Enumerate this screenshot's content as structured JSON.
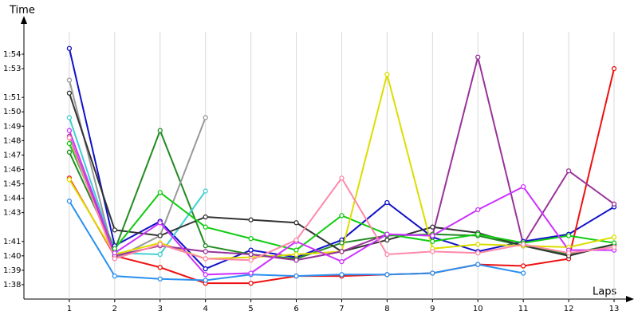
{
  "chart_data": {
    "type": "line",
    "y_label": "Time",
    "x_label": "Laps",
    "x": [
      1,
      2,
      3,
      4,
      5,
      6,
      7,
      8,
      9,
      10,
      11,
      12,
      13
    ],
    "xlim": [
      0,
      13.4
    ],
    "xticks": [
      1,
      2,
      3,
      4,
      5,
      6,
      7,
      8,
      9,
      10,
      11,
      12,
      13
    ],
    "ylim": [
      97,
      116
    ],
    "yticks": [
      {
        "value": 114,
        "label": "1:54"
      },
      {
        "value": 113,
        "label": "1:53"
      },
      {
        "value": 111,
        "label": "1:51"
      },
      {
        "value": 110,
        "label": "1:50"
      },
      {
        "value": 109,
        "label": "1:49"
      },
      {
        "value": 108,
        "label": "1:48"
      },
      {
        "value": 107,
        "label": "1:47"
      },
      {
        "value": 106,
        "label": "1:46"
      },
      {
        "value": 105,
        "label": "1:45"
      },
      {
        "value": 104,
        "label": "1:44"
      },
      {
        "value": 103,
        "label": "1:43"
      },
      {
        "value": 101,
        "label": "1:41"
      },
      {
        "value": 100,
        "label": "1:40"
      },
      {
        "value": 99,
        "label": "1:39"
      },
      {
        "value": 98,
        "label": "1:38"
      }
    ],
    "grid": true,
    "series": [
      {
        "color": "#1010c8",
        "values": [
          114.4,
          100.7,
          102.4,
          99.1,
          100.4,
          99.9,
          101.1,
          103.7,
          101.3,
          100.3,
          101.0,
          101.5,
          103.4
        ]
      },
      {
        "color": "#ee1111",
        "values": [
          105.4,
          100.0,
          99.2,
          98.1,
          98.1,
          98.6,
          98.6,
          98.7,
          98.8,
          99.4,
          99.3,
          99.8,
          113.0
        ]
      },
      {
        "color": "#2a90f0",
        "values": [
          103.8,
          98.6,
          98.4,
          98.3,
          98.7,
          98.6,
          98.7,
          98.7,
          98.8,
          99.4,
          98.8,
          null,
          null
        ]
      },
      {
        "color": "#228b22",
        "values": [
          107.2,
          100.4,
          108.7,
          100.7,
          100.1,
          99.8,
          100.9,
          101.4,
          101.5,
          101.4,
          100.7,
          100.1,
          100.8
        ]
      },
      {
        "color": "#999999",
        "values": [
          112.2,
          99.8,
          101.4,
          109.6,
          null,
          null,
          null,
          null,
          null,
          null,
          null,
          null,
          null
        ]
      },
      {
        "color": "#40d0d0",
        "values": [
          109.6,
          100.2,
          100.1,
          104.5,
          null,
          null,
          null,
          null,
          null,
          null,
          null,
          null,
          null
        ]
      },
      {
        "color": "#333333",
        "values": [
          111.3,
          101.8,
          101.4,
          102.7,
          102.5,
          102.3,
          100.3,
          101.1,
          102.0,
          101.6,
          100.7,
          100.0,
          100.8
        ]
      },
      {
        "color": "#11cc11",
        "values": [
          107.8,
          100.5,
          104.4,
          102.0,
          101.2,
          100.4,
          102.8,
          101.5,
          101.0,
          101.5,
          100.9,
          101.4,
          100.9
        ]
      },
      {
        "color": "#dddd00",
        "values": [
          105.3,
          100.1,
          100.9,
          99.8,
          99.9,
          100.1,
          100.3,
          112.6,
          100.5,
          100.8,
          100.7,
          100.6,
          101.3
        ]
      },
      {
        "color": "#993399",
        "values": [
          108.3,
          100.0,
          100.7,
          100.3,
          100.1,
          99.7,
          100.3,
          101.5,
          101.4,
          113.8,
          100.8,
          105.9,
          103.6
        ]
      },
      {
        "color": "#cc33ff",
        "values": [
          108.7,
          100.2,
          102.3,
          98.7,
          98.8,
          101.0,
          99.6,
          101.5,
          101.4,
          103.2,
          104.8,
          100.4,
          100.4
        ]
      },
      {
        "color": "#ff88aa",
        "values": [
          108.2,
          99.8,
          100.8,
          99.8,
          99.7,
          101.1,
          105.4,
          100.1,
          100.3,
          100.2,
          100.8,
          100.2,
          100.6
        ]
      }
    ]
  }
}
